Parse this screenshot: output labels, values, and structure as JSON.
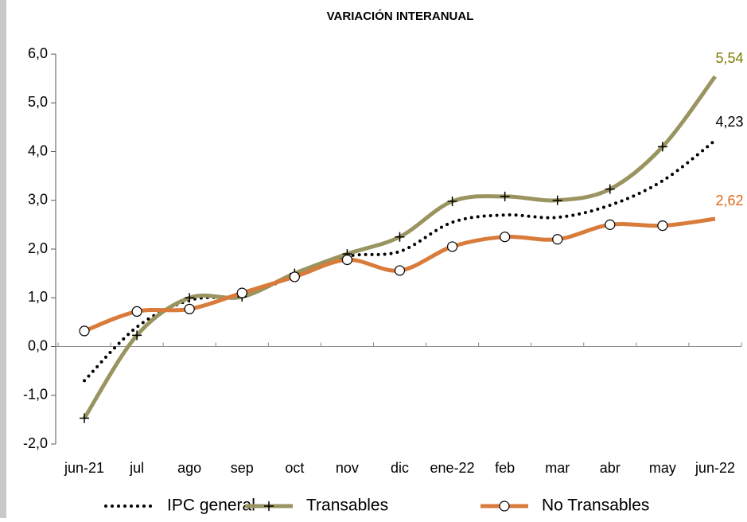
{
  "chart_data": {
    "type": "line",
    "title": "VARIACIÓN INTERANUAL",
    "categories": [
      "jun-21",
      "jul",
      "ago",
      "sep",
      "oct",
      "nov",
      "dic",
      "ene-22",
      "feb",
      "mar",
      "abr",
      "may",
      "jun-22"
    ],
    "ylim": [
      -2,
      6
    ],
    "yticks": [
      {
        "value": -2,
        "label": "-2,0"
      },
      {
        "value": -1,
        "label": "-1,0"
      },
      {
        "value": 0,
        "label": "0,0"
      },
      {
        "value": 1,
        "label": "1,0"
      },
      {
        "value": 2,
        "label": "2,0"
      },
      {
        "value": 3,
        "label": "3,0"
      },
      {
        "value": 4,
        "label": "4,0"
      },
      {
        "value": 5,
        "label": "5,0"
      },
      {
        "value": 6,
        "label": "6,0"
      }
    ],
    "grid": false,
    "legend": "bottom",
    "series": [
      {
        "name": "IPC general",
        "color": "#000000",
        "label_color": "#000000",
        "style": "dotted",
        "marker": "none",
        "values": [
          -0.7,
          0.4,
          0.95,
          1.05,
          1.45,
          1.85,
          1.95,
          2.55,
          2.7,
          2.65,
          2.9,
          3.4,
          4.23
        ],
        "value_labels": [
          null,
          null,
          null,
          null,
          null,
          null,
          null,
          null,
          null,
          null,
          null,
          null,
          "4,23"
        ]
      },
      {
        "name": "Transables",
        "color": "#9a9460",
        "label_color": "#7f7a00",
        "style": "solid",
        "marker": "plus",
        "values": [
          -1.47,
          0.23,
          1.0,
          1.02,
          1.5,
          1.9,
          2.25,
          2.98,
          3.08,
          3.0,
          3.23,
          4.1,
          5.54
        ],
        "value_labels": [
          null,
          null,
          null,
          null,
          null,
          null,
          null,
          null,
          null,
          null,
          null,
          null,
          "5,54"
        ]
      },
      {
        "name": "No Transables",
        "color": "#d97b3a",
        "label_color": "#e06a1a",
        "style": "solid",
        "marker": "circle",
        "values": [
          0.32,
          0.72,
          0.77,
          1.1,
          1.43,
          1.78,
          1.56,
          2.05,
          2.25,
          2.2,
          2.5,
          2.48,
          2.62
        ],
        "value_labels": [
          null,
          null,
          null,
          null,
          null,
          null,
          null,
          null,
          null,
          null,
          null,
          null,
          "2,62"
        ]
      }
    ]
  }
}
